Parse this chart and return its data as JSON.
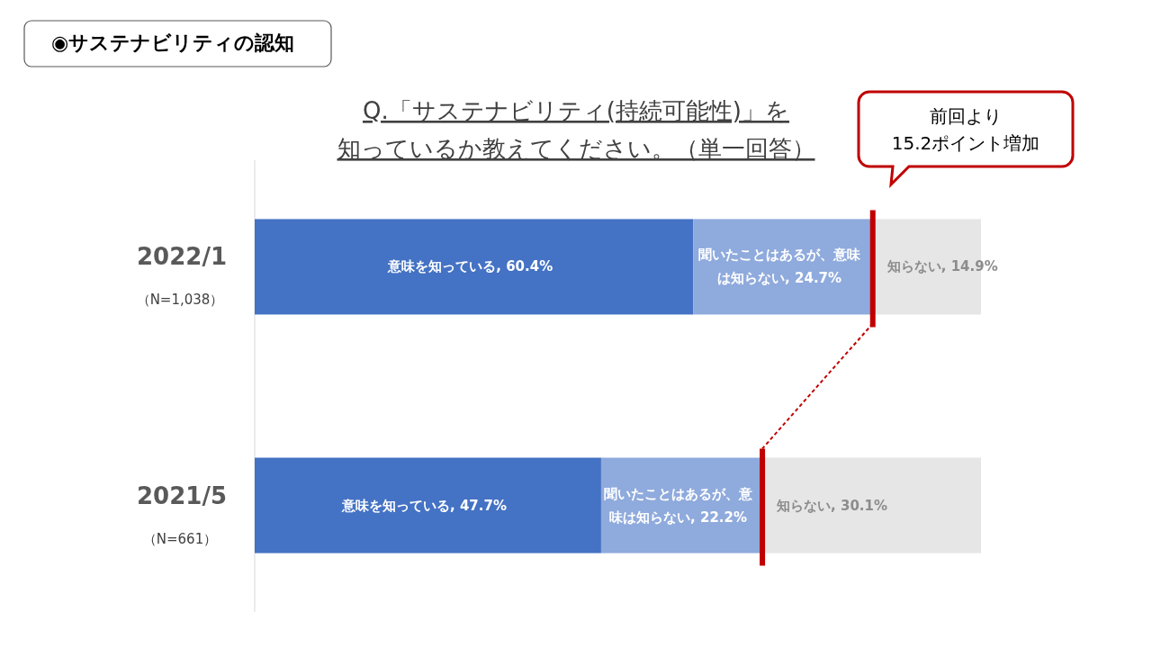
{
  "chart_data": {
    "type": "bar",
    "orientation": "horizontal",
    "stacked": true,
    "title": "◉サステナビリティの認知",
    "subtitle": "Q.「サステナビリティ(持続可能性)」を知っているか教えてください。（単一回答）",
    "categories": [
      "2022/1",
      "2021/5"
    ],
    "series": [
      {
        "color": "#4472c4",
        "values": [
          60.4,
          47.7
        ],
        "value_labels": [
          "意味を知っている, 60.4%",
          "意味を知っている, 47.7%"
        ]
      },
      {
        "color": "#8faadc",
        "values": [
          24.7,
          22.2
        ],
        "value_labels": [
          "聞いたことはあるが、意味は知らない, 24.7%",
          "聞いたことはあるが、意味は知らない, 22.2%"
        ]
      },
      {
        "color": "#e7e6e6",
        "values": [
          14.9,
          30.1
        ],
        "value_labels": [
          "知らない, 14.9%",
          "知らない, 30.1%"
        ]
      }
    ],
    "annotations": [
      "（N=1,038）",
      "（N=661）",
      "前回より\n15.2ポイント増加"
    ],
    "tick_labels": "y"
  }
}
